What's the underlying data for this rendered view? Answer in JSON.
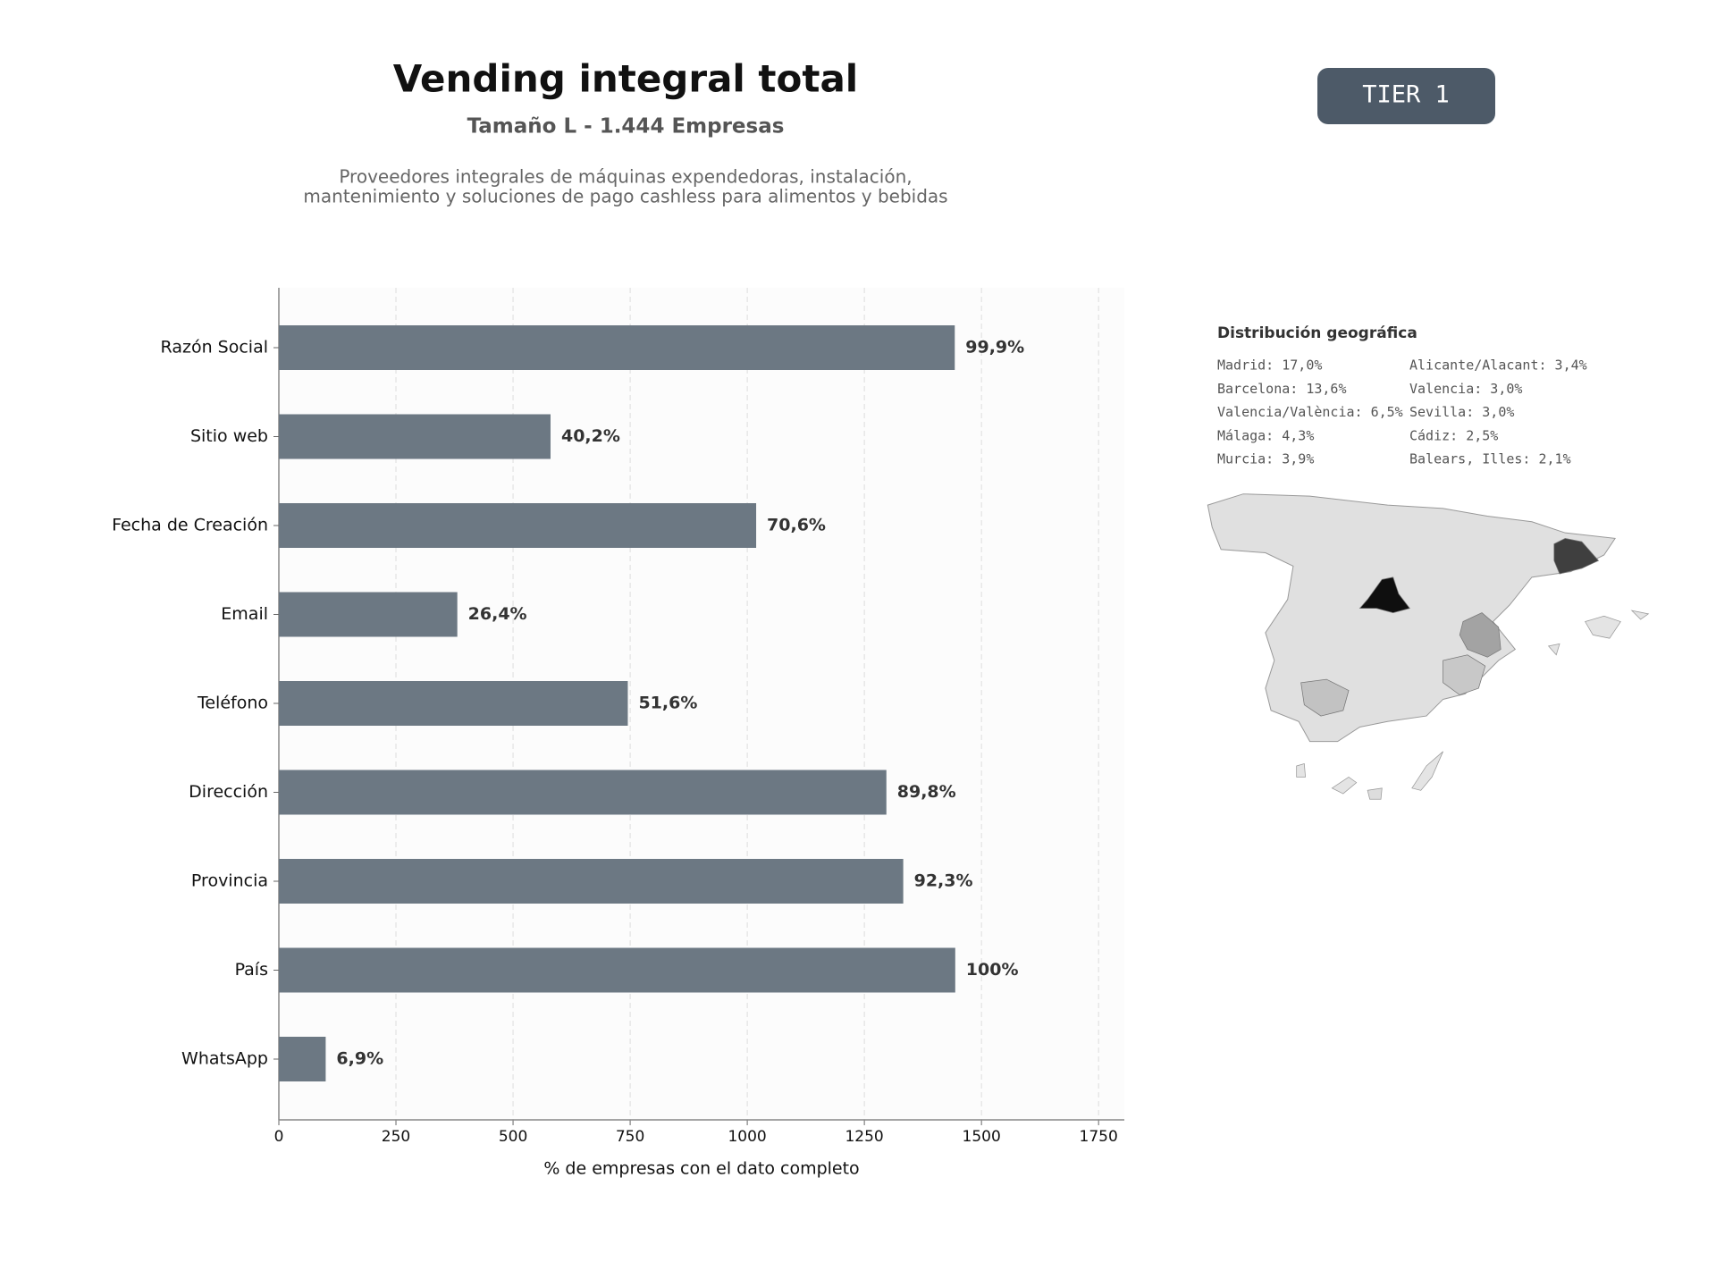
{
  "header": {
    "title": "Vending integral total",
    "subtitle": "Tamaño L - 1.444 Empresas",
    "description": [
      "Proveedores integrales de máquinas expendedoras, instalación,",
      "mantenimiento y soluciones de pago cashless para alimentos y bebidas"
    ],
    "badge": "TIER 1"
  },
  "chart_data": {
    "type": "bar",
    "orientation": "horizontal",
    "categories": [
      "Razón Social",
      "Sitio web",
      "Fecha de Creación",
      "Email",
      "Teléfono",
      "Dirección",
      "Provincia",
      "País",
      "WhatsApp"
    ],
    "values": [
      1443,
      580,
      1019,
      381,
      745,
      1297,
      1333,
      1444,
      100
    ],
    "value_labels": [
      "99,9%",
      "40,2%",
      "70,6%",
      "26,4%",
      "51,6%",
      "89,8%",
      "92,3%",
      "100%",
      "6,9%"
    ],
    "color": "#6c7883",
    "xlabel": "% de empresas con el dato completo",
    "xlim": [
      0,
      1805
    ],
    "xticks": [
      0,
      250,
      500,
      750,
      1000,
      1250,
      1500,
      1750
    ],
    "grid": true
  },
  "geo": {
    "title": "Distribución geográfica",
    "items": [
      {
        "label": "Madrid: 17,0%",
        "value": 17.0
      },
      {
        "label": "Barcelona: 13,6%",
        "value": 13.6
      },
      {
        "label": "Valencia/València: 6,5%",
        "value": 6.5
      },
      {
        "label": "Málaga: 4,3%",
        "value": 4.3
      },
      {
        "label": "Murcia: 3,9%",
        "value": 3.9
      },
      {
        "label": "Alicante/Alacant: 3,4%",
        "value": 3.4
      },
      {
        "label": "Valencia: 3,0%",
        "value": 3.0
      },
      {
        "label": "Sevilla: 3,0%",
        "value": 3.0
      },
      {
        "label": "Cádiz: 2,5%",
        "value": 2.5
      },
      {
        "label": "Balears, Illes: 2,1%",
        "value": 2.1
      }
    ]
  }
}
